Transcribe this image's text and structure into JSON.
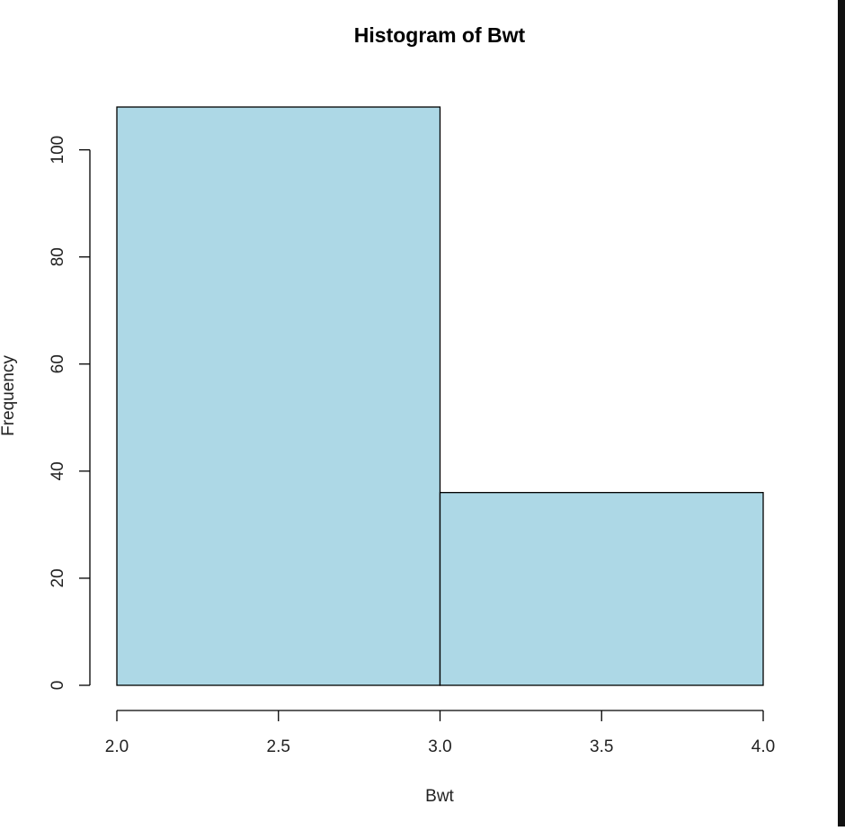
{
  "chart_data": {
    "type": "bar",
    "title": "Histogram of Bwt",
    "xlabel": "Bwt",
    "ylabel": "Frequency",
    "bins": [
      {
        "from": 2.0,
        "to": 3.0,
        "count": 108
      },
      {
        "from": 3.0,
        "to": 4.0,
        "count": 36
      }
    ],
    "xlim": [
      2.0,
      4.0
    ],
    "ylim": [
      0,
      108
    ],
    "x_ticks": [
      "2.0",
      "2.5",
      "3.0",
      "3.5",
      "4.0"
    ],
    "y_ticks": [
      "0",
      "20",
      "40",
      "60",
      "80",
      "100"
    ],
    "bar_fill": "#add8e6",
    "bar_stroke": "#000000",
    "grid": false,
    "legend": "none"
  }
}
